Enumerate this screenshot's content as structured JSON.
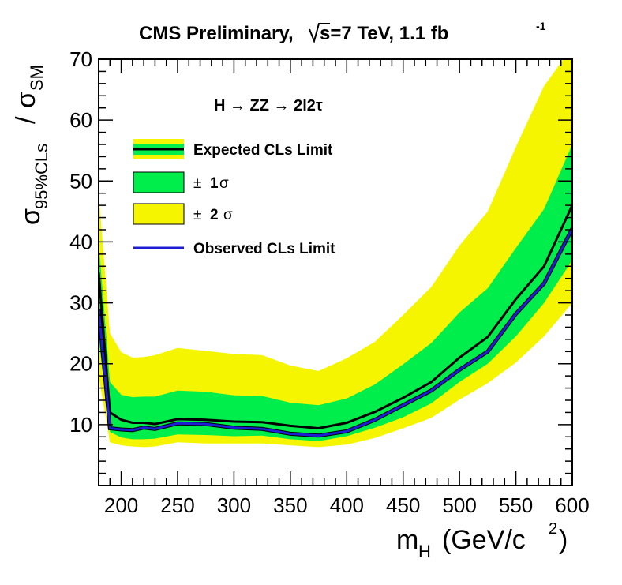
{
  "chart_data": {
    "type": "line",
    "title": "CMS Preliminary,",
    "title_energy": "s=7 TeV, 1.1 fb",
    "title_lumi_sup": "-1",
    "annotation": "H → ZZ → 2l2τ",
    "xlabel_main": "m",
    "xlabel_sub": "H",
    "xlabel_unit": "(GeV/c",
    "xlabel_unit_sup": "2",
    "xlabel_unit_close": ")",
    "ylabel_sigma": "σ",
    "ylabel_sub": "95%CLs",
    "ylabel_slash": "/",
    "ylabel_sigma2": "σ",
    "ylabel_sub2": "SM",
    "xlim": [
      180,
      600
    ],
    "ylim": [
      0,
      70
    ],
    "x_ticks": [
      200,
      250,
      300,
      350,
      400,
      450,
      500,
      550,
      600
    ],
    "y_ticks": [
      10,
      20,
      30,
      40,
      50,
      60,
      70
    ],
    "x": [
      180,
      190,
      200,
      210,
      220,
      230,
      250,
      275,
      300,
      325,
      350,
      375,
      400,
      425,
      450,
      475,
      500,
      525,
      550,
      575,
      600
    ],
    "series": [
      {
        "name": "Expected CLs Limit",
        "color": "#000000",
        "values": [
          35,
          12,
          10.8,
          10.3,
          10.3,
          10.1,
          10.9,
          10.8,
          10.5,
          10.4,
          9.8,
          9.4,
          10.3,
          12.1,
          14.4,
          17,
          21,
          24.4,
          30.6,
          36,
          46
        ]
      },
      {
        "name": "Observed CLs Limit",
        "color": "#1d1dd6",
        "values": [
          29,
          9.4,
          9.2,
          9.1,
          9.5,
          9.3,
          10.2,
          10.1,
          9.5,
          9.3,
          8.5,
          8.2,
          8.9,
          10.8,
          13.2,
          15.6,
          19,
          22,
          28.2,
          33.2,
          42.2
        ]
      }
    ],
    "band_1sigma": {
      "name": "± 1σ",
      "color": "#00ee4c",
      "low": [
        24,
        8.8,
        7.9,
        7.6,
        7.6,
        7.7,
        8.4,
        8.3,
        8.1,
        8.2,
        7.6,
        7.3,
        8.1,
        9.5,
        11.2,
        13.5,
        17,
        20,
        24.5,
        30,
        37
      ],
      "high": [
        40,
        17,
        14.9,
        14.5,
        14.6,
        14.6,
        15.6,
        15.4,
        14.8,
        14.7,
        13.6,
        13.2,
        14.3,
        16.6,
        19.9,
        23.4,
        28.4,
        32.4,
        39,
        45.4,
        56
      ]
    },
    "band_2sigma": {
      "name": "± 2 σ",
      "color": "#f5f500",
      "low": [
        18,
        7.1,
        6.6,
        6.4,
        6.3,
        6.4,
        7.1,
        6.9,
        6.9,
        6.9,
        6.6,
        6.3,
        6.7,
        7.8,
        9.4,
        11.1,
        14.1,
        16.8,
        20.2,
        24.5,
        30
      ]
    },
    "band_2sigma_high": [
      48,
      25,
      21.9,
      21,
      21.1,
      21.4,
      22.6,
      22.1,
      21.6,
      21.4,
      19.7,
      18.8,
      20.9,
      23.6,
      28,
      32.6,
      39.4,
      45,
      55.6,
      65.6,
      72
    ],
    "legend": {
      "placement": "top-left",
      "entries": [
        "Expected CLs Limit",
        "± 1σ",
        "± 2 σ",
        "Observed CLs Limit"
      ],
      "pm1_prefix": "±",
      "pm1_num": "1",
      "pm1_sigma": "σ",
      "pm2_prefix": "±",
      "pm2_num": "2",
      "pm2_sigma": "σ"
    },
    "colors": {
      "yellow_band": "#f5f500",
      "green_band": "#00ee4c",
      "expected": "#000000",
      "observed": "#1d1dd6"
    }
  }
}
